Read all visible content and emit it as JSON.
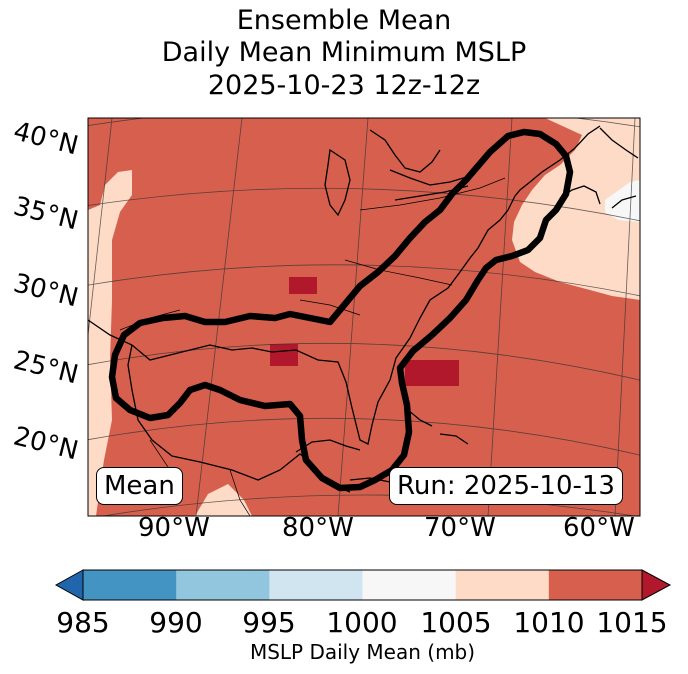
{
  "title": {
    "line1": "Ensemble Mean",
    "line2": "Daily Mean Minimum MSLP",
    "line3": "2025-10-23 12z-12z"
  },
  "map": {
    "lat_labels": [
      "40°N",
      "35°N",
      "30°N",
      "25°N",
      "20°N"
    ],
    "lon_labels": [
      "90°W",
      "80°W",
      "70°W",
      "60°W"
    ],
    "mean_box": "Mean",
    "run_box": "Run: 2025-10-13"
  },
  "colorbar": {
    "label": "MSLP Daily Mean (mb)",
    "ticks": [
      "985",
      "990",
      "995",
      "1000",
      "1005",
      "1010",
      "1015"
    ],
    "colors": [
      "#4393c3",
      "#92c5de",
      "#d1e5f0",
      "#f7f7f7",
      "#fddbc7",
      "#d6604d"
    ],
    "under_color": "#2166ac",
    "over_color": "#b2182b"
  }
}
